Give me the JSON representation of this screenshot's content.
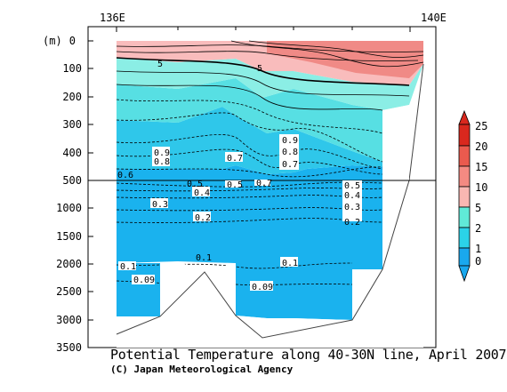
{
  "chart_data": {
    "type": "heatmap",
    "title": "Potential Temperature along 40-30N line, April 2007",
    "credit": "(C) Japan Meteorological Agency",
    "ylabel": "(m)",
    "x_ticks": [
      "136E",
      "140E"
    ],
    "y_ticks": [
      "0",
      "100",
      "200",
      "300",
      "400",
      "500",
      "1000",
      "1500",
      "2000",
      "2500",
      "3000",
      "3500"
    ],
    "y_break": "upper panel 0–500 m, lower panel 500–3500 m",
    "contour_labels": [
      "5",
      "5",
      "0.9",
      "0.8",
      "0.7",
      "0.9",
      "0.8",
      "0.7",
      "0.6",
      "0.5",
      "0.7",
      "0.5",
      "0.4",
      "0.3",
      "0.2",
      "0.5",
      "0.4",
      "0.3",
      "0.2",
      "0.1",
      "0.09",
      "0.1",
      "0.1",
      "0.09"
    ],
    "colorbar": {
      "ticks": [
        "25",
        "20",
        "15",
        "10",
        "5",
        "2",
        "1",
        "0"
      ],
      "colors": [
        "#d9281e",
        "#ea5a4e",
        "#f48a82",
        "#f9b7b2",
        "#60ead8",
        "#2bd3e8",
        "#19a8ee"
      ]
    }
  }
}
